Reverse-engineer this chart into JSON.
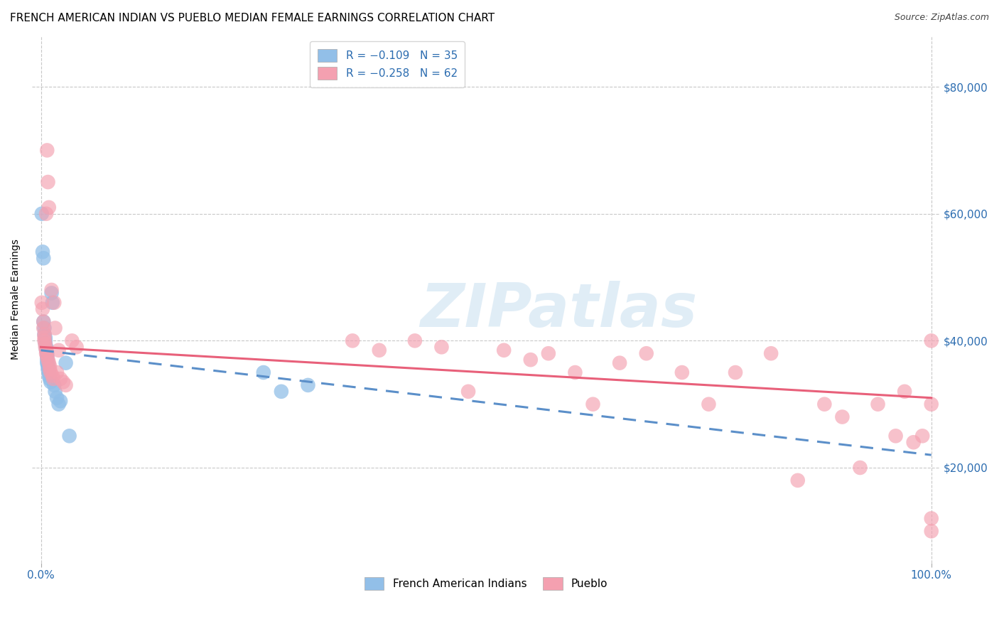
{
  "title": "FRENCH AMERICAN INDIAN VS PUEBLO MEDIAN FEMALE EARNINGS CORRELATION CHART",
  "source": "Source: ZipAtlas.com",
  "ylabel": "Median Female Earnings",
  "ytick_labels": [
    "$80,000",
    "$60,000",
    "$40,000",
    "$20,000"
  ],
  "ytick_values": [
    80000,
    60000,
    40000,
    20000
  ],
  "ylim": [
    5000,
    88000
  ],
  "xlim": [
    -0.01,
    1.01
  ],
  "xtick_labels": [
    "0.0%",
    "100.0%"
  ],
  "xtick_values": [
    0.0,
    1.0
  ],
  "watermark_text": "ZIPatlas",
  "blue_scatter_color": "#92bfe8",
  "pink_scatter_color": "#f4a0b0",
  "blue_line_color": "#5b8fc9",
  "pink_line_color": "#e8607a",
  "blue_trend_x": [
    0.0,
    1.0
  ],
  "blue_trend_y": [
    38500,
    22000
  ],
  "pink_trend_x": [
    0.0,
    1.0
  ],
  "pink_trend_y": [
    39000,
    31000
  ],
  "legend1_labels": [
    "R = −0.109   N = 35",
    "R = −0.258   N = 62"
  ],
  "legend2_labels": [
    "French American Indians",
    "Pueblo"
  ],
  "legend_text_color": "#2b6cb0",
  "grid_color": "#c8c8c8",
  "background_color": "#ffffff",
  "title_fontsize": 11,
  "source_fontsize": 9,
  "tick_fontsize": 11,
  "ylabel_fontsize": 10,
  "legend_fontsize": 11,
  "blue_scatter_x": [
    0.001,
    0.002,
    0.003,
    0.003,
    0.004,
    0.004,
    0.005,
    0.005,
    0.005,
    0.006,
    0.006,
    0.006,
    0.007,
    0.007,
    0.007,
    0.007,
    0.008,
    0.008,
    0.008,
    0.009,
    0.009,
    0.01,
    0.011,
    0.012,
    0.013,
    0.015,
    0.016,
    0.018,
    0.02,
    0.022,
    0.028,
    0.032,
    0.25,
    0.27,
    0.3
  ],
  "blue_scatter_y": [
    60000,
    54000,
    53000,
    43000,
    42000,
    41000,
    40500,
    40000,
    39500,
    39000,
    38800,
    38500,
    38000,
    37500,
    37000,
    36500,
    36200,
    36000,
    35500,
    35000,
    34500,
    34000,
    33500,
    47500,
    46000,
    33000,
    32000,
    31000,
    30000,
    30500,
    36500,
    25000,
    35000,
    32000,
    33000
  ],
  "pink_scatter_x": [
    0.001,
    0.002,
    0.003,
    0.003,
    0.004,
    0.004,
    0.004,
    0.005,
    0.005,
    0.006,
    0.006,
    0.006,
    0.007,
    0.007,
    0.008,
    0.008,
    0.009,
    0.009,
    0.01,
    0.01,
    0.011,
    0.012,
    0.013,
    0.014,
    0.015,
    0.016,
    0.018,
    0.02,
    0.022,
    0.025,
    0.028,
    0.035,
    0.04,
    0.35,
    0.38,
    0.42,
    0.45,
    0.48,
    0.52,
    0.55,
    0.57,
    0.6,
    0.62,
    0.65,
    0.68,
    0.72,
    0.75,
    0.78,
    0.82,
    0.85,
    0.88,
    0.9,
    0.92,
    0.94,
    0.96,
    0.97,
    0.98,
    0.99,
    1.0,
    1.0,
    1.0,
    1.0
  ],
  "pink_scatter_y": [
    46000,
    45000,
    43000,
    42000,
    41000,
    40500,
    40000,
    39500,
    39000,
    38500,
    60000,
    38000,
    70000,
    37500,
    65000,
    37000,
    36500,
    61000,
    36000,
    35500,
    35000,
    48000,
    34500,
    34000,
    46000,
    42000,
    35000,
    38500,
    34000,
    33500,
    33000,
    40000,
    39000,
    40000,
    38500,
    40000,
    39000,
    32000,
    38500,
    37000,
    38000,
    35000,
    30000,
    36500,
    38000,
    35000,
    30000,
    35000,
    38000,
    18000,
    30000,
    28000,
    20000,
    30000,
    25000,
    32000,
    24000,
    25000,
    40000,
    30000,
    12000,
    10000
  ]
}
